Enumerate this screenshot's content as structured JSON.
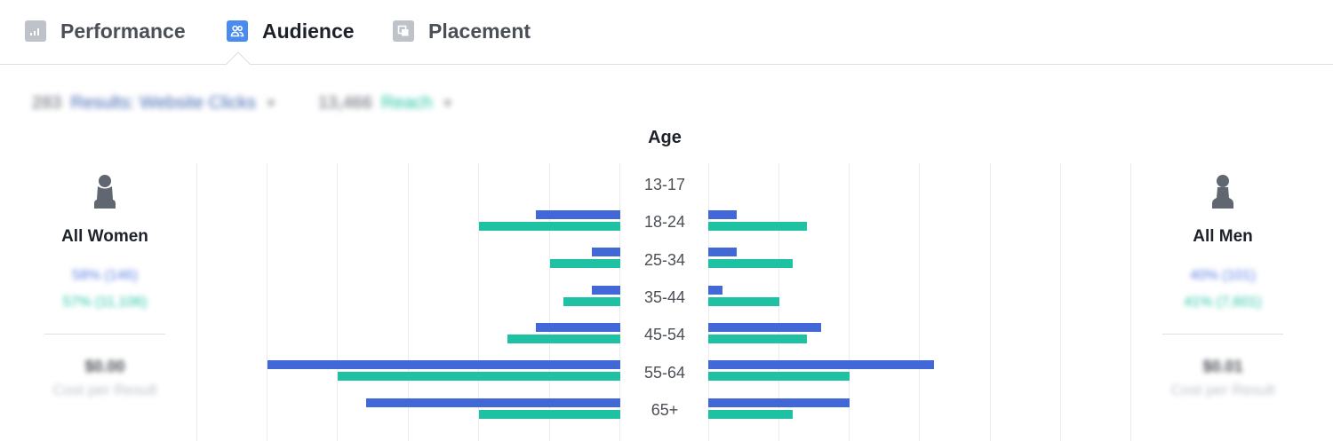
{
  "tabs": [
    {
      "label": "Performance",
      "icon": "bar-chart-icon",
      "active": false
    },
    {
      "label": "Audience",
      "icon": "people-icon",
      "active": true
    },
    {
      "label": "Placement",
      "icon": "placement-icon",
      "active": false
    }
  ],
  "metrics": {
    "results_value": "283",
    "results_label": "Results: Website Clicks",
    "reach_value": "13,466",
    "reach_label": "Reach"
  },
  "women": {
    "title": "All Women",
    "results_line": "58% (146)",
    "reach_line": "57% (11,106)",
    "cost": "$0.00",
    "cost_label": "Cost per Result"
  },
  "men": {
    "title": "All Men",
    "results_line": "40% (101)",
    "reach_line": "41% (7,601)",
    "cost": "$0.01",
    "cost_label": "Cost per Result"
  },
  "colors": {
    "results": "#4267d6",
    "reach": "#1fc1a3"
  },
  "chart_data": {
    "type": "bar",
    "title": "Age",
    "orientation": "horizontal-butterfly",
    "categories": [
      "13-17",
      "18-24",
      "25-34",
      "35-44",
      "45-54",
      "55-64",
      "65+"
    ],
    "series": [
      {
        "side": "women",
        "metric": "results",
        "color": "#4267d6",
        "values": [
          0,
          6,
          2,
          2,
          6,
          25,
          18
        ]
      },
      {
        "side": "women",
        "metric": "reach",
        "color": "#1fc1a3",
        "values": [
          0,
          10,
          5,
          4,
          8,
          20,
          10
        ]
      },
      {
        "side": "men",
        "metric": "results",
        "color": "#4267d6",
        "values": [
          0,
          2,
          2,
          1,
          8,
          16,
          10
        ]
      },
      {
        "side": "men",
        "metric": "reach",
        "color": "#1fc1a3",
        "values": [
          0,
          7,
          6,
          5,
          7,
          10,
          6
        ]
      }
    ],
    "xlim": [
      0,
      25
    ],
    "grid": true
  }
}
